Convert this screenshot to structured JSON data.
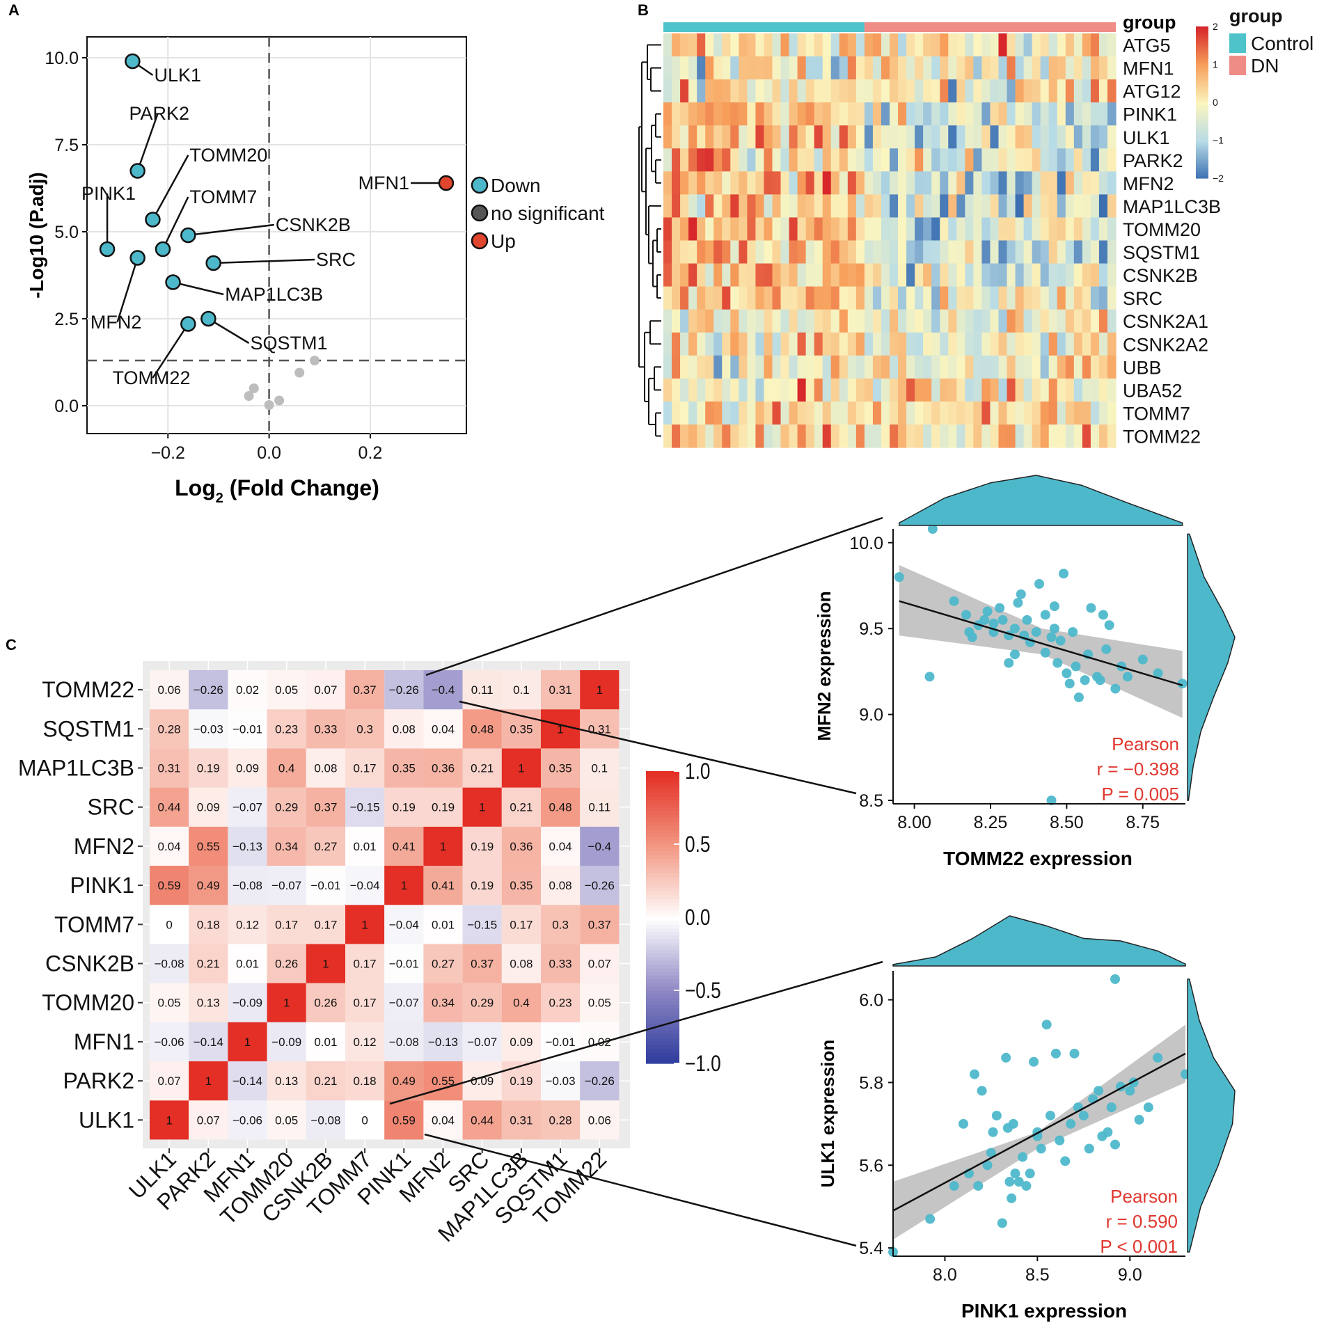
{
  "chart_data": [
    {
      "panel": "A",
      "type": "scatter",
      "title": "",
      "xlabel_parts": [
        "Log",
        "2",
        " (Fold Change)"
      ],
      "ylabel": "-Log10 (P.adj)",
      "xlim": [
        -0.36,
        0.39
      ],
      "ylim": [
        -0.8,
        10.6
      ],
      "x_ticks": [
        -0.2,
        0.0,
        0.2
      ],
      "x_tick_labels": [
        "−0.2",
        "0.0",
        "0.2"
      ],
      "y_ticks": [
        0,
        2.5,
        5,
        7.5,
        10
      ],
      "y_tick_labels": [
        "0.0",
        "2.5",
        "5.0",
        "7.5",
        "10.0"
      ],
      "threshold_y": 1.3,
      "threshold_x": 0,
      "legend": [
        {
          "label": "Down",
          "color": "#4EB8CB"
        },
        {
          "label": "no significant",
          "color": "#555555"
        },
        {
          "label": "Up",
          "color": "#E0452D"
        }
      ],
      "points": [
        {
          "gene": "ULK1",
          "x": -0.27,
          "y": 9.9,
          "group": "Down",
          "lx": -0.23,
          "ly": 9.5
        },
        {
          "gene": "PARK2",
          "x": -0.26,
          "y": 6.75,
          "group": "Down",
          "lx": -0.22,
          "ly": 8.4
        },
        {
          "gene": "TOMM20",
          "x": -0.23,
          "y": 5.35,
          "group": "Down",
          "lx": -0.16,
          "ly": 7.2
        },
        {
          "gene": "PINK1",
          "x": -0.32,
          "y": 4.5,
          "group": "Down",
          "lx": -0.32,
          "ly": 6.1
        },
        {
          "gene": "TOMM7",
          "x": -0.21,
          "y": 4.5,
          "group": "Down",
          "lx": -0.16,
          "ly": 6.0
        },
        {
          "gene": "CSNK2B",
          "x": -0.16,
          "y": 4.9,
          "group": "Down",
          "lx": 0.01,
          "ly": 5.2
        },
        {
          "gene": "MFN2",
          "x": -0.26,
          "y": 4.25,
          "group": "Down",
          "lx": -0.3,
          "ly": 2.4
        },
        {
          "gene": "SRC",
          "x": -0.11,
          "y": 4.1,
          "group": "Down",
          "lx": 0.09,
          "ly": 4.2
        },
        {
          "gene": "MAP1LC3B",
          "x": -0.19,
          "y": 3.55,
          "group": "Down",
          "lx": -0.09,
          "ly": 3.2
        },
        {
          "gene": "SQSTM1",
          "x": -0.12,
          "y": 2.5,
          "group": "Down",
          "lx": -0.04,
          "ly": 1.8
        },
        {
          "gene": "TOMM22",
          "x": -0.16,
          "y": 2.35,
          "group": "Down",
          "lx": -0.23,
          "ly": 0.8
        },
        {
          "gene": "MFN1",
          "x": 0.35,
          "y": 6.4,
          "group": "Up",
          "lx": 0.28,
          "ly": 6.4
        },
        {
          "gene": "",
          "x": 0.09,
          "y": 1.3,
          "group": "no significant"
        },
        {
          "gene": "",
          "x": 0.06,
          "y": 0.95,
          "group": "no significant"
        },
        {
          "gene": "",
          "x": -0.03,
          "y": 0.5,
          "group": "no significant"
        },
        {
          "gene": "",
          "x": -0.04,
          "y": 0.28,
          "group": "no significant"
        },
        {
          "gene": "",
          "x": 0.02,
          "y": 0.15,
          "group": "no significant"
        },
        {
          "gene": "",
          "x": 0.0,
          "y": 0.02,
          "group": "no significant"
        }
      ]
    },
    {
      "panel": "B",
      "type": "heatmap",
      "title": "",
      "row_labels": [
        "ATG5",
        "MFN1",
        "ATG12",
        "PINK1",
        "ULK1",
        "PARK2",
        "MFN2",
        "MAP1LC3B",
        "TOMM20",
        "SQSTM1",
        "CSNK2B",
        "SRC",
        "CSNK2A1",
        "CSNK2A2",
        "UBB",
        "UBA52",
        "TOMM7",
        "TOMM22"
      ],
      "annotation_label": "group",
      "groups": [
        {
          "name": "Control",
          "n_samples": 24,
          "color": "#4EC4CA"
        },
        {
          "name": "DN",
          "n_samples": 30,
          "color": "#F08C86"
        }
      ],
      "legend_title": "group",
      "color_scale": {
        "min": -2,
        "max": 2,
        "ticks": [
          2,
          1,
          0,
          -1,
          -2
        ],
        "tick_labels": [
          "2",
          "1",
          "0",
          "−1",
          "−2"
        ],
        "colors": [
          "#3B6FB1",
          "#B7DBE6",
          "#FBF5BF",
          "#F7A05C",
          "#D7272A"
        ]
      },
      "note": "Individual cell values are not legible; a deterministic row-scaled pattern is generated from seed.",
      "seed": 4281
    },
    {
      "panel": "C",
      "type": "heatmap",
      "title": "",
      "labels": [
        "ULK1",
        "PARK2",
        "MFN1",
        "TOMM20",
        "CSNK2B",
        "TOMM7",
        "PINK1",
        "MFN2",
        "SRC",
        "MAP1LC3B",
        "SQSTM1",
        "TOMM22"
      ],
      "values": [
        [
          1,
          0.07,
          -0.06,
          0.05,
          -0.08,
          0,
          0.59,
          0.04,
          0.44,
          0.31,
          0.28,
          0.06
        ],
        [
          0.07,
          1,
          -0.14,
          0.13,
          0.21,
          0.18,
          0.49,
          0.55,
          0.09,
          0.19,
          -0.03,
          -0.26
        ],
        [
          -0.06,
          -0.14,
          1,
          -0.09,
          0.01,
          0.12,
          -0.08,
          -0.13,
          -0.07,
          0.09,
          -0.01,
          0.02
        ],
        [
          0.05,
          0.13,
          -0.09,
          1,
          0.26,
          0.17,
          -0.07,
          0.34,
          0.29,
          0.4,
          0.23,
          0.05
        ],
        [
          -0.08,
          0.21,
          0.01,
          0.26,
          1,
          0.17,
          -0.01,
          0.27,
          0.37,
          0.08,
          0.33,
          0.07
        ],
        [
          0,
          0.18,
          0.12,
          0.17,
          0.17,
          1,
          -0.04,
          0.01,
          -0.15,
          0.17,
          0.3,
          0.37
        ],
        [
          0.59,
          0.49,
          -0.08,
          -0.07,
          -0.01,
          -0.04,
          1,
          0.41,
          0.19,
          0.35,
          0.08,
          -0.26
        ],
        [
          0.04,
          0.55,
          -0.13,
          0.34,
          0.27,
          0.01,
          0.41,
          1,
          0.19,
          0.36,
          0.04,
          -0.4
        ],
        [
          0.44,
          0.09,
          -0.07,
          0.29,
          0.37,
          -0.15,
          0.19,
          0.19,
          1,
          0.21,
          0.48,
          0.11
        ],
        [
          0.31,
          0.19,
          0.09,
          0.4,
          0.08,
          0.17,
          0.35,
          0.36,
          0.21,
          1,
          0.35,
          0.1
        ],
        [
          0.28,
          -0.03,
          -0.01,
          0.23,
          0.33,
          0.3,
          0.08,
          0.04,
          0.48,
          0.35,
          1,
          0.31
        ],
        [
          0.06,
          -0.26,
          0.02,
          0.05,
          0.07,
          0.37,
          -0.26,
          -0.4,
          0.11,
          0.1,
          0.31,
          1
        ]
      ],
      "value_labels": [
        [
          "1",
          "0.07",
          "−0.06",
          "0.05",
          "−0.08",
          "0",
          "0.59",
          "0.04",
          "0.44",
          "0.31",
          "0.28",
          "0.06"
        ],
        [
          "0.07",
          "1",
          "−0.14",
          "0.13",
          "0.21",
          "0.18",
          "0.49",
          "0.55",
          "0.09",
          "0.19",
          "−0.03",
          "−0.26"
        ],
        [
          "−0.06",
          "−0.14",
          "1",
          "−0.09",
          "0.01",
          "0.12",
          "−0.08",
          "−0.13",
          "−0.07",
          "0.09",
          "−0.01",
          "0.02"
        ],
        [
          "0.05",
          "0.13",
          "−0.09",
          "1",
          "0.26",
          "0.17",
          "−0.07",
          "0.34",
          "0.29",
          "0.4",
          "0.23",
          "0.05"
        ],
        [
          "−0.08",
          "0.21",
          "0.01",
          "0.26",
          "1",
          "0.17",
          "−0.01",
          "0.27",
          "0.37",
          "0.08",
          "0.33",
          "0.07"
        ],
        [
          "0",
          "0.18",
          "0.12",
          "0.17",
          "0.17",
          "1",
          "−0.04",
          "0.01",
          "−0.15",
          "0.17",
          "0.3",
          "0.37"
        ],
        [
          "0.59",
          "0.49",
          "−0.08",
          "−0.07",
          "−0.01",
          "−0.04",
          "1",
          "0.41",
          "0.19",
          "0.35",
          "0.08",
          "−0.26"
        ],
        [
          "0.04",
          "0.55",
          "−0.13",
          "0.34",
          "0.27",
          "0.01",
          "0.41",
          "1",
          "0.19",
          "0.36",
          "0.04",
          "−0.4"
        ],
        [
          "0.44",
          "0.09",
          "−0.07",
          "0.29",
          "0.37",
          "−0.15",
          "0.19",
          "0.19",
          "1",
          "0.21",
          "0.48",
          "0.11"
        ],
        [
          "0.31",
          "0.19",
          "0.09",
          "0.4",
          "0.08",
          "0.17",
          "0.35",
          "0.36",
          "0.21",
          "1",
          "0.35",
          "0.1"
        ],
        [
          "0.28",
          "−0.03",
          "−0.01",
          "0.23",
          "0.33",
          "0.3",
          "0.08",
          "0.04",
          "0.48",
          "0.35",
          "1",
          "0.31"
        ],
        [
          "0.06",
          "−0.26",
          "0.02",
          "0.05",
          "0.07",
          "0.37",
          "−0.26",
          "−0.4",
          "0.11",
          "0.1",
          "0.31",
          "1"
        ]
      ],
      "color_scale": {
        "min": -1,
        "max": 1,
        "ticks": [
          1,
          0.5,
          0,
          -0.5,
          -1
        ],
        "tick_labels": [
          "1.0",
          "0.5",
          "0.0",
          "−0.5",
          "−1.0"
        ],
        "colors": [
          "#2B3A9C",
          "#8C86C3",
          "#FFFFFF",
          "#F29782",
          "#E32F25"
        ]
      }
    },
    {
      "panel": "D-top",
      "type": "scatter",
      "title": "",
      "xlabel": "TOMM22 expression",
      "ylabel": "MFN2 expression",
      "xlim": [
        7.93,
        8.89
      ],
      "ylim": [
        8.48,
        10.08
      ],
      "x_ticks": [
        8.0,
        8.25,
        8.5,
        8.75
      ],
      "x_tick_labels": [
        "8.00",
        "8.25",
        "8.50",
        "8.75"
      ],
      "y_ticks": [
        8.5,
        9.0,
        9.5,
        10.0
      ],
      "y_tick_labels": [
        "8.5",
        "9.0",
        "9.5",
        "10.0"
      ],
      "stats": [
        "Pearson",
        "r = −0.398",
        "P = 0.005"
      ],
      "fit": {
        "x": [
          7.95,
          8.88
        ],
        "y": [
          9.66,
          9.17
        ]
      },
      "band": {
        "x": [
          7.95,
          8.42,
          8.88
        ],
        "upper": [
          9.87,
          9.5,
          9.37
        ],
        "lower": [
          9.46,
          9.35,
          8.98
        ]
      },
      "x": [
        7.95,
        8.06,
        8.05,
        8.13,
        8.17,
        8.19,
        8.18,
        8.21,
        8.23,
        8.24,
        8.26,
        8.26,
        8.28,
        8.29,
        8.31,
        8.31,
        8.33,
        8.33,
        8.34,
        8.35,
        8.36,
        8.37,
        8.38,
        8.4,
        8.41,
        8.43,
        8.43,
        8.45,
        8.46,
        8.46,
        8.47,
        8.48,
        8.49,
        8.5,
        8.51,
        8.52,
        8.53,
        8.54,
        8.56,
        8.57,
        8.58,
        8.6,
        8.61,
        8.62,
        8.63,
        8.64,
        8.66,
        8.68,
        8.7,
        8.75,
        8.8,
        8.88,
        8.45
      ],
      "y": [
        9.8,
        10.08,
        9.22,
        9.66,
        9.58,
        9.45,
        9.48,
        9.52,
        9.55,
        9.6,
        9.48,
        9.53,
        9.62,
        9.55,
        9.46,
        9.3,
        9.5,
        9.35,
        9.65,
        9.7,
        9.46,
        9.55,
        9.42,
        9.48,
        9.76,
        9.58,
        9.36,
        9.45,
        9.5,
        9.63,
        9.3,
        9.43,
        9.82,
        9.24,
        9.18,
        9.48,
        9.28,
        9.1,
        9.2,
        9.35,
        9.62,
        9.22,
        9.2,
        9.58,
        9.38,
        9.52,
        9.15,
        9.28,
        9.22,
        9.32,
        9.24,
        9.18,
        8.5
      ],
      "density_x": {
        "x": [
          7.95,
          8.1,
          8.25,
          8.4,
          8.55,
          8.7,
          8.88
        ],
        "d": [
          0.05,
          0.55,
          0.85,
          1.0,
          0.8,
          0.45,
          0.05
        ]
      },
      "density_y": {
        "y": [
          8.5,
          8.7,
          8.9,
          9.1,
          9.3,
          9.45,
          9.6,
          9.8,
          10.05
        ],
        "d": [
          0.02,
          0.12,
          0.28,
          0.55,
          0.85,
          1.0,
          0.75,
          0.35,
          0.04
        ]
      }
    },
    {
      "panel": "D-bottom",
      "type": "scatter",
      "title": "",
      "xlabel": "PINK1 expression",
      "ylabel": "ULK1 expression",
      "xlim": [
        7.72,
        9.3
      ],
      "ylim": [
        5.38,
        6.07
      ],
      "x_ticks": [
        8.0,
        8.5,
        9.0
      ],
      "x_tick_labels": [
        "8.0",
        "8.5",
        "9.0"
      ],
      "y_ticks": [
        5.4,
        5.6,
        5.8,
        6.0
      ],
      "y_tick_labels": [
        "5.4",
        "5.6",
        "5.8",
        "6.0"
      ],
      "stats": [
        "Pearson",
        "r = 0.590",
        "P < 0.001"
      ],
      "fit": {
        "x": [
          7.72,
          9.3
        ],
        "y": [
          5.49,
          5.87
        ]
      },
      "band": {
        "x": [
          7.72,
          8.5,
          9.3
        ],
        "upper": [
          5.56,
          5.68,
          5.94
        ],
        "lower": [
          5.42,
          5.64,
          5.8
        ]
      },
      "x": [
        7.72,
        7.92,
        8.05,
        8.1,
        8.13,
        8.16,
        8.18,
        8.2,
        8.23,
        8.25,
        8.26,
        8.28,
        8.31,
        8.33,
        8.34,
        8.35,
        8.36,
        8.37,
        8.38,
        8.4,
        8.42,
        8.44,
        8.46,
        8.48,
        8.5,
        8.52,
        8.55,
        8.57,
        8.6,
        8.62,
        8.65,
        8.68,
        8.7,
        8.72,
        8.75,
        8.78,
        8.8,
        8.83,
        8.85,
        8.88,
        8.9,
        8.92,
        8.95,
        9.0,
        9.02,
        9.05,
        9.1,
        9.15,
        9.3,
        8.92,
        8.5
      ],
      "y": [
        5.39,
        5.47,
        5.55,
        5.7,
        5.58,
        5.82,
        5.55,
        5.78,
        5.6,
        5.63,
        5.68,
        5.72,
        5.46,
        5.86,
        5.69,
        5.56,
        5.52,
        5.7,
        5.58,
        5.56,
        5.62,
        5.55,
        5.58,
        5.85,
        5.68,
        5.64,
        5.94,
        5.72,
        5.87,
        5.66,
        5.61,
        5.7,
        5.87,
        5.74,
        5.72,
        5.64,
        5.76,
        5.78,
        5.67,
        5.68,
        5.74,
        5.65,
        5.79,
        5.78,
        5.8,
        5.71,
        5.74,
        5.86,
        5.82,
        6.05,
        5.67
      ],
      "density_x": {
        "x": [
          7.72,
          7.95,
          8.15,
          8.35,
          8.55,
          8.75,
          8.95,
          9.15,
          9.3
        ],
        "d": [
          0.03,
          0.18,
          0.55,
          1.0,
          0.8,
          0.55,
          0.5,
          0.3,
          0.04
        ]
      },
      "density_y": {
        "y": [
          5.39,
          5.5,
          5.6,
          5.7,
          5.78,
          5.86,
          5.95,
          6.05
        ],
        "d": [
          0.04,
          0.28,
          0.65,
          0.95,
          1.0,
          0.55,
          0.25,
          0.04
        ]
      }
    }
  ],
  "panel_labels": [
    "A",
    "B",
    "C"
  ]
}
